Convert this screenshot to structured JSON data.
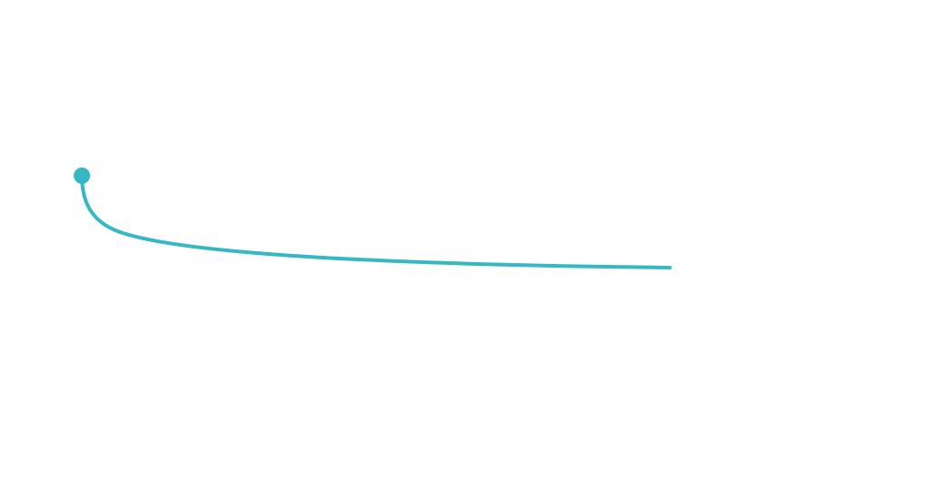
{
  "diagram": {
    "connector": {
      "color": "#35b8c2",
      "style": "curved",
      "start_marker": "dot",
      "end_marker": "none"
    }
  }
}
